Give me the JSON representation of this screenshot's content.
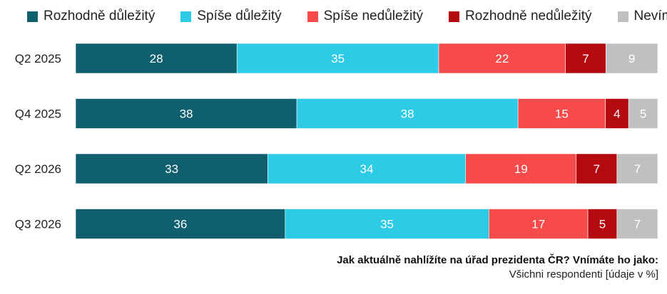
{
  "chart_data": {
    "type": "bar",
    "orientation": "horizontal-stacked-100",
    "categories": [
      "Q2 2025",
      "Q4 2025",
      "Q2 2026",
      "Q3 2026"
    ],
    "series": [
      {
        "name": "Rozhodně důležitý",
        "color": "#0f5f6f",
        "label_color": "#ffffff",
        "values": [
          28,
          38,
          33,
          36
        ]
      },
      {
        "name": "Spíše důležitý",
        "color": "#2ecbe6",
        "label_color": "#ffffff",
        "values": [
          35,
          38,
          34,
          35
        ]
      },
      {
        "name": "Spíše nedůležitý",
        "color": "#f74b4b",
        "label_color": "#ffffff",
        "values": [
          22,
          15,
          19,
          17
        ]
      },
      {
        "name": "Rozhodně nedůležitý",
        "color": "#b40a0f",
        "label_color": "#ffffff",
        "values": [
          7,
          4,
          7,
          5
        ]
      },
      {
        "name": "Nevím",
        "color": "#c0c0c0",
        "label_color": "#ffffff",
        "values": [
          9,
          5,
          7,
          7
        ]
      }
    ],
    "legend_position": "top",
    "grid": false
  },
  "footnote": {
    "question": "Jak aktuálně nahlížíte na úřad prezidenta ČR? Vnímáte ho jako:",
    "base": "Všichni respondenti [údaje v %]"
  }
}
